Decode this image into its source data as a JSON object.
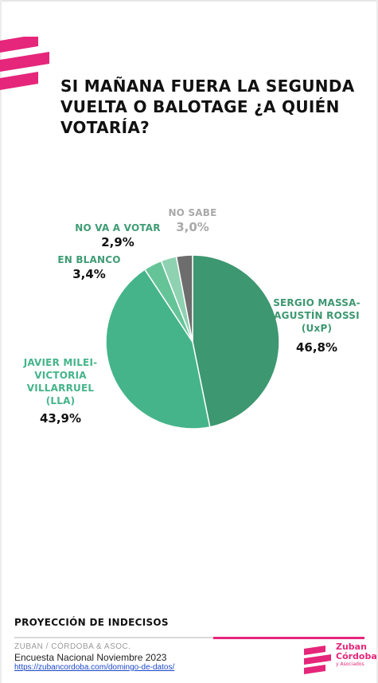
{
  "title": "SI MAÑANA FUERA LA SEGUNDA VUELTA O BALOTAGE ¿A QUIÉN VOTARÍA?",
  "chart_data": {
    "type": "pie",
    "slices": [
      {
        "name_lines": [
          "SERGIO MASSA-",
          "AGUSTÍN ROSSI",
          "(UxP)"
        ],
        "value": 46.8,
        "value_label": "46,8%",
        "color": "#3d9770",
        "label_color": "#3d9770"
      },
      {
        "name_lines": [
          "JAVIER MILEI-",
          "VICTORIA",
          "VILLARRUEL",
          "(LLA)"
        ],
        "value": 43.9,
        "value_label": "43,9%",
        "color": "#45b48a",
        "label_color": "#45b48a"
      },
      {
        "name_lines": [
          "EN BLANCO"
        ],
        "value": 3.4,
        "value_label": "3,4%",
        "color": "#65c497",
        "label_color": "#3f9c74"
      },
      {
        "name_lines": [
          "NO VA A VOTAR"
        ],
        "value": 2.9,
        "value_label": "2,9%",
        "color": "#8ed2b1",
        "label_color": "#3f9c74"
      },
      {
        "name_lines": [
          "NO SABE"
        ],
        "value": 3.0,
        "value_label": "3,0%",
        "color": "#6d6d6d",
        "label_color": "#a9a9a9"
      }
    ]
  },
  "footer": {
    "section_title": "PROYECCIÓN DE INDECISOS",
    "firm": "ZUBAN / CÓRDOBA & ASOC.",
    "survey": "Encuesta Nacional Noviembre 2023",
    "url": "https://zubancordoba.com/domingo-de-datos/"
  },
  "brand": {
    "line1": "Zuban",
    "line2": "Córdoba",
    "line3": "y Asociados",
    "color": "#e5267a"
  },
  "icons": {
    "header_logo": "zc-stripes-logo-icon",
    "brand_logo": "zc-stripes-logo-icon"
  }
}
